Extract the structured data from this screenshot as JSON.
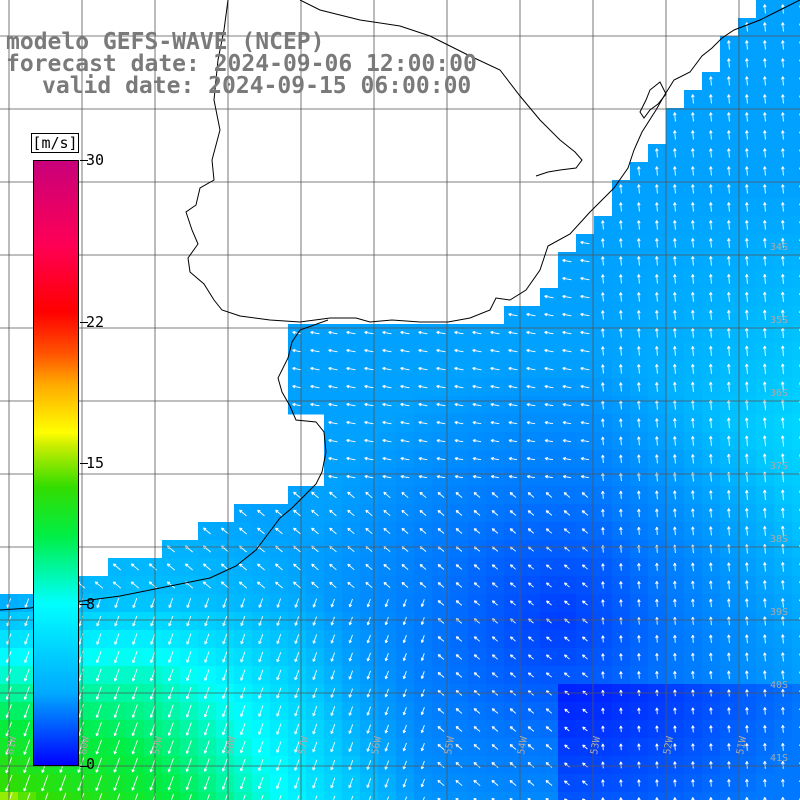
{
  "title": {
    "line1": "modelo GEFS-WAVE (NCEP)",
    "line2": "forecast date: 2024-09-06 12:00:00",
    "line3": "valid date: 2024-09-15 06:00:00"
  },
  "colorbar": {
    "unit": "[m/s]",
    "min": 0,
    "max": 30,
    "ticks": [
      "30",
      "22",
      "15",
      "8",
      "0"
    ],
    "tick_values": [
      30,
      22,
      15,
      8,
      0
    ]
  },
  "colors": {
    "land": "#ffffff",
    "grid": "#555555",
    "coast": "#000000",
    "arrow": "#ffffff"
  },
  "axis_labels": {
    "bottom": [
      "61W",
      "60W",
      "59W",
      "58W",
      "57W",
      "56W",
      "55W",
      "54W",
      "53W",
      "52W",
      "51W"
    ],
    "right": [
      "34S",
      "35S",
      "36S",
      "37S",
      "38S",
      "39S",
      "40S",
      "41S"
    ]
  }
}
